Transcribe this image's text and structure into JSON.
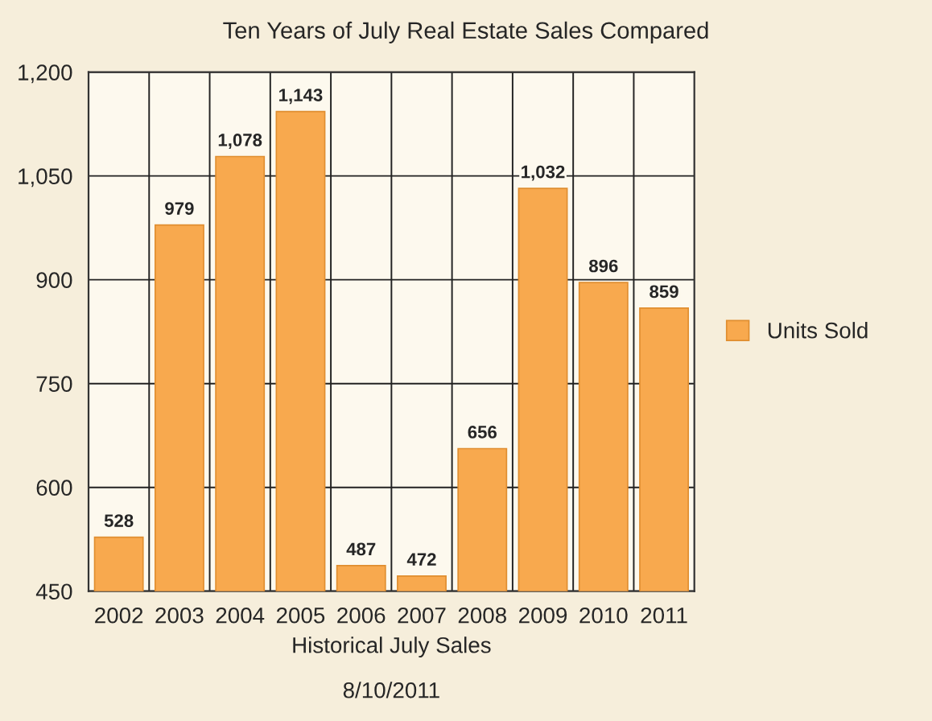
{
  "chart_data": {
    "type": "bar",
    "title": "Ten Years of July Real Estate Sales Compared",
    "xlabel": "Historical July Sales",
    "categories": [
      "2002",
      "2003",
      "2004",
      "2005",
      "2006",
      "2007",
      "2008",
      "2009",
      "2010",
      "2011"
    ],
    "series": [
      {
        "name": "Units Sold",
        "color": "#f8a94e",
        "values": [
          528,
          979,
          1078,
          1143,
          487,
          472,
          656,
          1032,
          896,
          859
        ]
      }
    ],
    "value_labels": [
      "528",
      "979",
      "1,078",
      "1,143",
      "487",
      "472",
      "656",
      "1,032",
      "896",
      "859"
    ],
    "ylim": [
      450,
      1200
    ],
    "yticks": [
      450,
      600,
      750,
      900,
      {
        "value": 1050,
        "label": "1,050"
      },
      {
        "value": 1200,
        "label": "1,200"
      }
    ],
    "grid": true,
    "legend": "right",
    "annotations": [
      "8/10/2011"
    ]
  }
}
